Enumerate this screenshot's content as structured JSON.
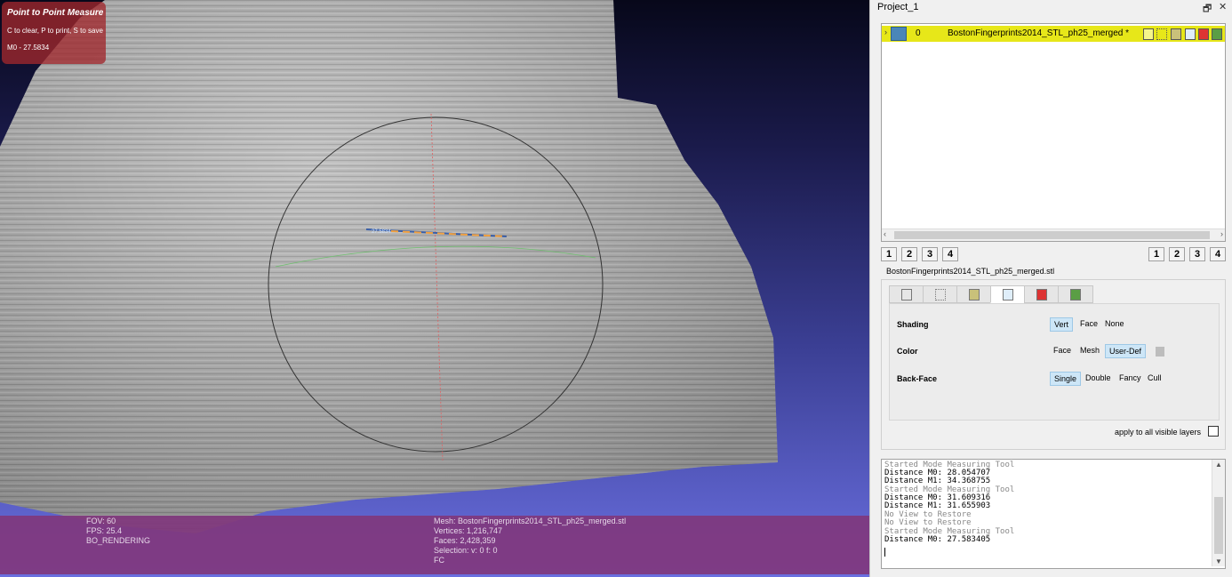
{
  "viewport": {
    "hud": {
      "title": "Point to Point Measure",
      "hint": "C to clear, P to print, S to save",
      "measure": "M0 - 27.5834"
    },
    "info_left": [
      "FOV: 60",
      "FPS:   25.4",
      "BO_RENDERING"
    ],
    "info_right": [
      "Mesh: BostonFingerprints2014_STL_ph25_merged.stl",
      "Vertices: 1,216,747",
      "Faces: 2,428,359",
      "Selection: v: 0 f: 0",
      "FC"
    ],
    "measure_label": "27.5834"
  },
  "dock": {
    "title": "Project_1",
    "float_icon": "🗗",
    "close_icon": "✕",
    "layer": {
      "expander": "›",
      "index": "0",
      "name": "BostonFingerprints2014_STL_ph25_merged *",
      "row_color": "#e7e719",
      "icons": [
        "points-icon",
        "wireframe-icon",
        "texture-icon",
        "shading-icon",
        "color-icon",
        "selection-icon"
      ]
    },
    "scroll_left": "‹",
    "scroll_right": "›",
    "views_left": [
      "1",
      "2",
      "3",
      "4"
    ],
    "views_right": [
      "1",
      "2",
      "3",
      "4"
    ],
    "decor_title": "BostonFingerprints2014_STL_ph25_merged.stl",
    "tabs": [
      "box-tab",
      "points-tab",
      "texture-tab",
      "shading-tab",
      "color-tab",
      "selection-tab"
    ],
    "shading": {
      "label": "Shading",
      "options": [
        "Vert",
        "Face",
        "None"
      ],
      "selected": "Vert"
    },
    "color": {
      "label": "Color",
      "options": [
        "Face",
        "Mesh",
        "User-Def"
      ],
      "selected": "User-Def"
    },
    "backface": {
      "label": "Back-Face",
      "options": [
        "Single",
        "Double",
        "Fancy",
        "Cull"
      ],
      "selected": "Single"
    },
    "apply_label": "apply to all visible layers",
    "log": [
      "Started Mode Measuring Tool",
      "Distance M0: 28.054707",
      "Distance M1: 34.368755",
      "Started Mode Measuring Tool",
      "Distance M0: 31.609316",
      "Distance M1: 31.655903",
      "No View to Restore",
      "No View to Restore",
      "Started Mode Measuring Tool",
      "Distance M0: 27.583405"
    ],
    "vs_up": "▲",
    "vs_down": "▼"
  }
}
